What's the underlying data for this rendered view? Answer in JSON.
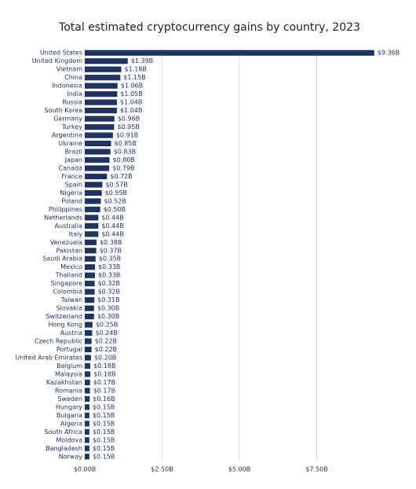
{
  "chart_data": {
    "type": "hbar",
    "title": "Total estimated cryptocurrency gains by country, 2023",
    "categories": [
      "United States",
      "United Kingdom",
      "Vietnam",
      "China",
      "Indonesia",
      "India",
      "Russia",
      "South Korea",
      "Germany",
      "Turkey",
      "Argentina",
      "Ukraine",
      "Brazil",
      "Japan",
      "Canada",
      "France",
      "Spain",
      "Nigeria",
      "Poland",
      "Philippines",
      "Netherlands",
      "Australia",
      "Italy",
      "Venezuela",
      "Pakistan",
      "Saudi Arabia",
      "Mexico",
      "Thailand",
      "Singapore",
      "Colombia",
      "Taiwan",
      "Slovakia",
      "Switzerland",
      "Hong Kong",
      "Austria",
      "Czech Republic",
      "Portugal",
      "United Arab Emirates",
      "Belgium",
      "Malaysia",
      "Kazakhstan",
      "Romania",
      "Sweden",
      "Hungary",
      "Bulgaria",
      "Algeria",
      "South Africa",
      "Moldova",
      "Bangladesh",
      "Norway"
    ],
    "values": [
      9.36,
      1.39,
      1.18,
      1.15,
      1.06,
      1.05,
      1.04,
      1.04,
      0.96,
      0.95,
      0.91,
      0.85,
      0.83,
      0.8,
      0.79,
      0.72,
      0.57,
      0.55,
      0.52,
      0.5,
      0.44,
      0.44,
      0.44,
      0.38,
      0.37,
      0.35,
      0.33,
      0.33,
      0.32,
      0.32,
      0.31,
      0.3,
      0.3,
      0.25,
      0.24,
      0.22,
      0.22,
      0.2,
      0.18,
      0.18,
      0.17,
      0.17,
      0.16,
      0.15,
      0.15,
      0.15,
      0.15,
      0.15,
      0.15,
      0.15
    ],
    "value_labels": [
      "$9.36B",
      "$1.39B",
      "$1.18B",
      "$1.15B",
      "$1.06B",
      "$1.05B",
      "$1.04B",
      "$1.04B",
      "$0.96B",
      "$0.95B",
      "$0.91B",
      "$0.85B",
      "$0.83B",
      "$0.80B",
      "$0.79B",
      "$0.72B",
      "$0.57B",
      "$0.55B",
      "$0.52B",
      "$0.50B",
      "$0.44B",
      "$0.44B",
      "$0.44B",
      "$0.38B",
      "$0.37B",
      "$0.35B",
      "$0.33B",
      "$0.33B",
      "$0.32B",
      "$0.32B",
      "$0.31B",
      "$0.30B",
      "$0.30B",
      "$0.25B",
      "$0.24B",
      "$0.22B",
      "$0.22B",
      "$0.20B",
      "$0.18B",
      "$0.18B",
      "$0.17B",
      "$0.17B",
      "$0.16B",
      "$0.15B",
      "$0.15B",
      "$0.15B",
      "$0.15B",
      "$0.15B",
      "$0.15B",
      "$0.15B"
    ],
    "color": "#1f3461",
    "xlim": [
      0,
      10
    ],
    "xticks": [
      {
        "value": 0,
        "label": "$0.00B"
      },
      {
        "value": 2.5,
        "label": "$2.50B"
      },
      {
        "value": 5,
        "label": "$5.00B"
      },
      {
        "value": 7.5,
        "label": "$7.50B"
      }
    ],
    "grid": true
  }
}
